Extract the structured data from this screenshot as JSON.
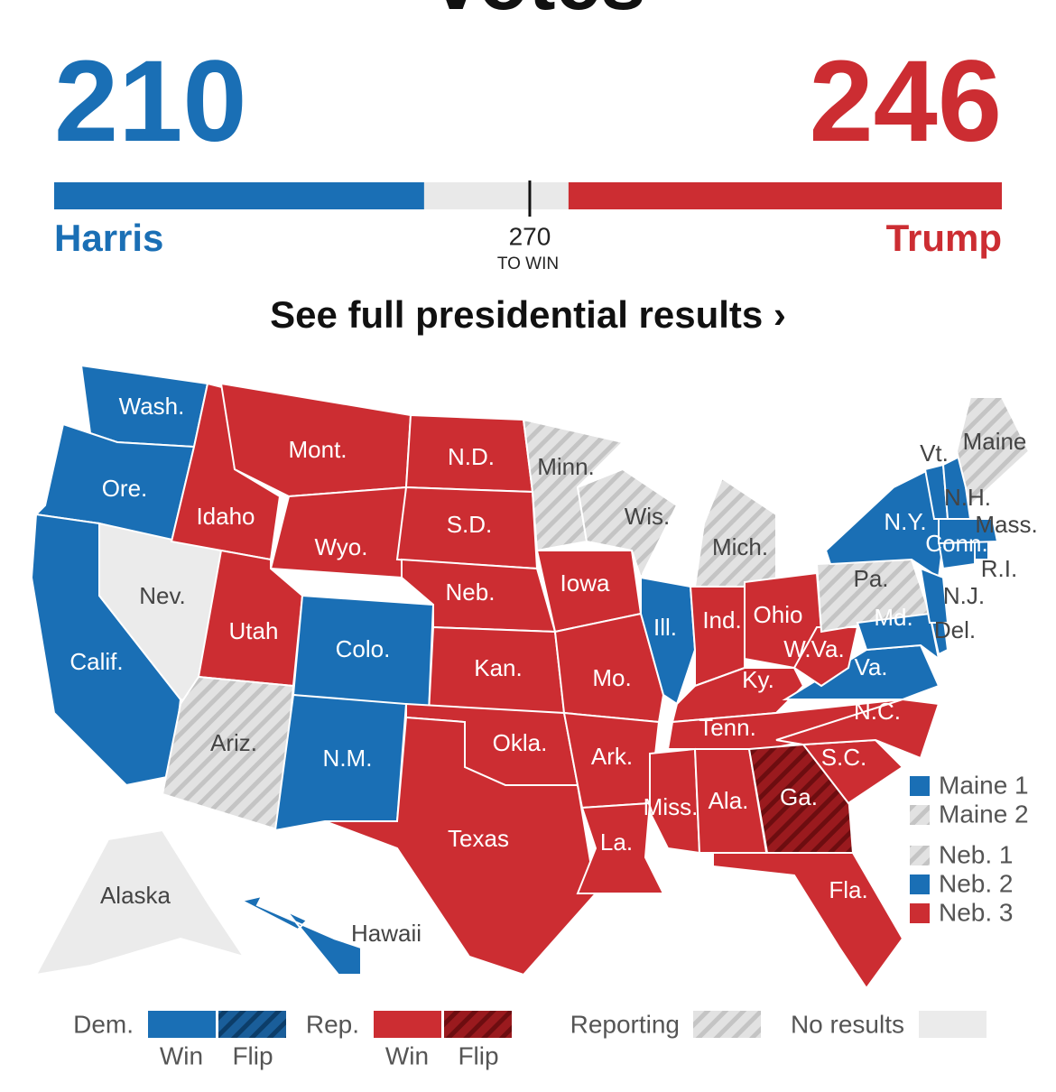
{
  "header": {
    "partial_title": "votes",
    "harris": {
      "name": "Harris",
      "votes": 210,
      "color": "#1a6fb5"
    },
    "trump": {
      "name": "Trump",
      "votes": 246,
      "color": "#cc2d32"
    },
    "to_win": {
      "value": 270,
      "label": "TO WIN"
    },
    "bar_range": [
      0,
      538
    ]
  },
  "link": "See full presidential results ›",
  "map": {
    "states": [
      {
        "label": "Wash.",
        "status": "dem"
      },
      {
        "label": "Ore.",
        "status": "dem"
      },
      {
        "label": "Calif.",
        "status": "dem"
      },
      {
        "label": "Nev.",
        "status": "none"
      },
      {
        "label": "Idaho",
        "status": "rep"
      },
      {
        "label": "Mont.",
        "status": "rep"
      },
      {
        "label": "Wyo.",
        "status": "rep"
      },
      {
        "label": "Utah",
        "status": "rep"
      },
      {
        "label": "Colo.",
        "status": "dem"
      },
      {
        "label": "Ariz.",
        "status": "reporting"
      },
      {
        "label": "N.M.",
        "status": "dem"
      },
      {
        "label": "N.D.",
        "status": "rep"
      },
      {
        "label": "S.D.",
        "status": "rep"
      },
      {
        "label": "Neb.",
        "status": "rep"
      },
      {
        "label": "Kan.",
        "status": "rep"
      },
      {
        "label": "Okla.",
        "status": "rep"
      },
      {
        "label": "Texas",
        "status": "rep"
      },
      {
        "label": "Minn.",
        "status": "reporting"
      },
      {
        "label": "Iowa",
        "status": "rep"
      },
      {
        "label": "Mo.",
        "status": "rep"
      },
      {
        "label": "Ark.",
        "status": "rep"
      },
      {
        "label": "La.",
        "status": "rep"
      },
      {
        "label": "Wis.",
        "status": "reporting"
      },
      {
        "label": "Ill.",
        "status": "dem"
      },
      {
        "label": "Mich.",
        "status": "reporting"
      },
      {
        "label": "Ind.",
        "status": "rep"
      },
      {
        "label": "Ohio",
        "status": "rep"
      },
      {
        "label": "Ky.",
        "status": "rep"
      },
      {
        "label": "Tenn.",
        "status": "rep"
      },
      {
        "label": "Miss.",
        "status": "rep"
      },
      {
        "label": "Ala.",
        "status": "rep"
      },
      {
        "label": "Ga.",
        "status": "rep-flip"
      },
      {
        "label": "Fla.",
        "status": "rep"
      },
      {
        "label": "S.C.",
        "status": "rep"
      },
      {
        "label": "N.C.",
        "status": "rep"
      },
      {
        "label": "Va.",
        "status": "dem"
      },
      {
        "label": "W.Va.",
        "status": "rep"
      },
      {
        "label": "Pa.",
        "status": "reporting"
      },
      {
        "label": "N.Y.",
        "status": "dem"
      },
      {
        "label": "Md.",
        "status": "dem"
      },
      {
        "label": "Del.",
        "status": "dem"
      },
      {
        "label": "N.J.",
        "status": "dem"
      },
      {
        "label": "Conn.",
        "status": "dem"
      },
      {
        "label": "R.I.",
        "status": "dem"
      },
      {
        "label": "Mass.",
        "status": "dem"
      },
      {
        "label": "Vt.",
        "status": "dem"
      },
      {
        "label": "N.H.",
        "status": "dem"
      },
      {
        "label": "Maine",
        "status": "reporting"
      },
      {
        "label": "Alaska",
        "status": "none"
      },
      {
        "label": "Hawaii",
        "status": "dem"
      }
    ],
    "districts": [
      {
        "label": "Maine 1",
        "status": "dem"
      },
      {
        "label": "Maine 2",
        "status": "reporting"
      },
      {
        "label": "Neb. 1",
        "status": "reporting"
      },
      {
        "label": "Neb. 2",
        "status": "dem"
      },
      {
        "label": "Neb. 3",
        "status": "rep"
      }
    ]
  },
  "legend": {
    "dem": "Dem.",
    "rep": "Rep.",
    "win": "Win",
    "flip": "Flip",
    "reporting": "Reporting",
    "none": "No results"
  }
}
